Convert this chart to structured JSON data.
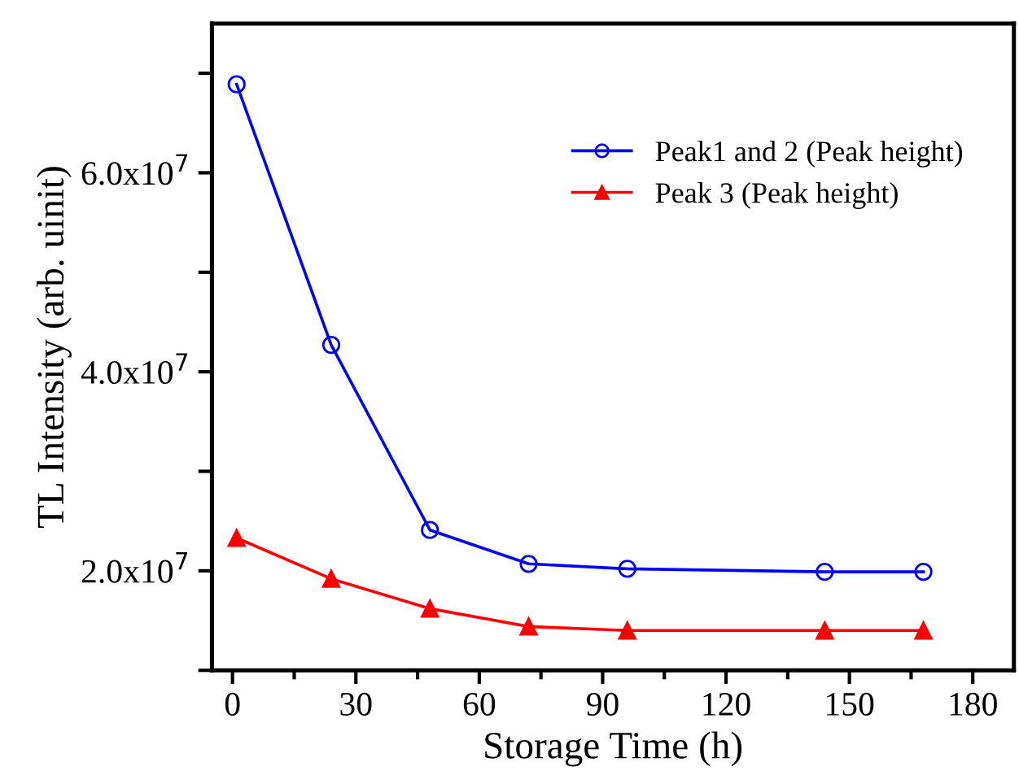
{
  "chart_data": {
    "type": "line",
    "xlabel": "Storage Time (h)",
    "ylabel": "TL Intensity (arb. uinit)",
    "x": [
      1,
      24,
      48,
      72,
      96,
      144,
      168
    ],
    "series": [
      {
        "name": "Peak1 and 2 (Peak height)",
        "color": "#0000ff",
        "marker": "circle",
        "values": [
          68900000.0,
          42700000.0,
          24100000.0,
          20700000.0,
          20200000.0,
          19900000.0,
          19900000.0
        ]
      },
      {
        "name": "Peak 3 (Peak height)",
        "color": "#ff0000",
        "marker": "triangle",
        "values": [
          23300000.0,
          19200000.0,
          16200000.0,
          14400000.0,
          14000000.0,
          14000000.0,
          14000000.0
        ]
      }
    ],
    "xlim": [
      -5,
      190
    ],
    "xticks": [
      0,
      30,
      60,
      90,
      120,
      150,
      180
    ],
    "ylim": [
      10000000.0,
      75000000.0
    ],
    "yticks": [
      {
        "value": 10000000.0,
        "label": null
      },
      {
        "value": 20000000.0,
        "label": "2.0x10$^{7}$"
      },
      {
        "value": 30000000.0,
        "label": null
      },
      {
        "value": 40000000.0,
        "label": "4.0x10$^{7}$"
      },
      {
        "value": 50000000.0,
        "label": null
      },
      {
        "value": 60000000.0,
        "label": "6.0x10$^{7}$"
      },
      {
        "value": 70000000.0,
        "label": null
      }
    ],
    "grid": false,
    "legend": "top right",
    "line_style": "solid"
  }
}
